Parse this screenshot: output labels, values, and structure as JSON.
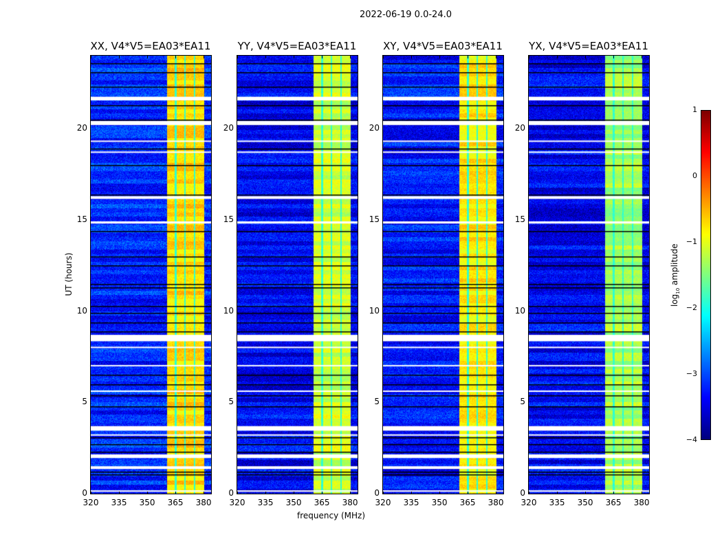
{
  "chart_data": {
    "type": "heatmap",
    "title": "2022-06-19 0.0-24.0",
    "xlabel": "frequency (MHz)",
    "ylabel": "UT (hours)",
    "xlim": [
      320,
      384
    ],
    "ylim": [
      0,
      24
    ],
    "xticks": [
      "320",
      "335",
      "350",
      "365",
      "380"
    ],
    "yticks": [
      "0",
      "5",
      "10",
      "15",
      "20"
    ],
    "panels": [
      {
        "title": "XX, V4*V5=EA03*EA11",
        "band_level": -0.7,
        "bg_level": -3.2
      },
      {
        "title": "YY, V4*V5=EA03*EA11",
        "band_level": -1.1,
        "bg_level": -3.4
      },
      {
        "title": "XY, V4*V5=EA03*EA11",
        "band_level": -0.8,
        "bg_level": -3.3
      },
      {
        "title": "YX, V4*V5=EA03*EA11",
        "band_level": -1.3,
        "bg_level": -3.4
      }
    ],
    "band_mhz": [
      360.5,
      380
    ],
    "band_gaps_mhz": [
      365,
      370,
      375
    ],
    "flagged_ut": [
      [
        21.55,
        21.75
      ],
      [
        20.2,
        20.42
      ],
      [
        19.3,
        19.35
      ],
      [
        18.7,
        18.75
      ],
      [
        16.15,
        16.3
      ],
      [
        14.8,
        14.92
      ],
      [
        8.35,
        8.7
      ],
      [
        8.0,
        8.05
      ],
      [
        7.0,
        7.05
      ],
      [
        5.6,
        5.65
      ],
      [
        3.45,
        3.7
      ],
      [
        3.2,
        3.25
      ],
      [
        1.95,
        2.15
      ],
      [
        1.35,
        1.5
      ],
      [
        0.1,
        0.18
      ]
    ],
    "dark_lines_ut": [
      23.6,
      23.1,
      22.3,
      21.3,
      20.5,
      18.9,
      18.0,
      16.4,
      14.4,
      13.0,
      12.5,
      11.5,
      11.3,
      10.3,
      9.9,
      9.4,
      8.9,
      6.5,
      6.0,
      5.4,
      4.8,
      3.1,
      2.7,
      2.3,
      1.2,
      1.05
    ],
    "colorbar": {
      "label": "log₁₀ amplitude",
      "label_main": "log",
      "label_sub": "10",
      "label_rest": " amplitude",
      "range": [
        -4,
        1
      ],
      "ticks": [
        "1",
        "0",
        "−1",
        "−2",
        "−3",
        "−4"
      ],
      "colormap": "jet"
    }
  }
}
